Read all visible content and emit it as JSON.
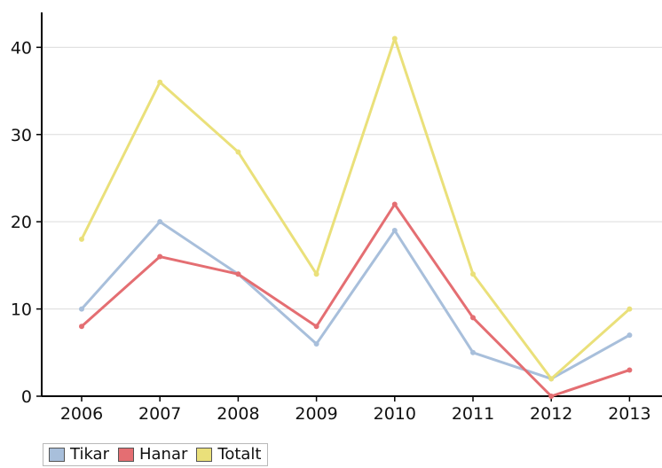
{
  "chart_data": {
    "type": "line",
    "categories": [
      "2006",
      "2007",
      "2008",
      "2009",
      "2010",
      "2011",
      "2012",
      "2013"
    ],
    "series": [
      {
        "name": "Tikar",
        "color": "#a8bfdb",
        "values": [
          10,
          20,
          14,
          6,
          19,
          5,
          2,
          7
        ]
      },
      {
        "name": "Hanar",
        "color": "#e46e72",
        "values": [
          8,
          16,
          14,
          8,
          22,
          9,
          0,
          3
        ]
      },
      {
        "name": "Totalt",
        "color": "#eae07a",
        "values": [
          18,
          36,
          28,
          14,
          41,
          14,
          2,
          10
        ]
      }
    ],
    "ylim": [
      0,
      44
    ],
    "yticks": [
      "0",
      "10",
      "20",
      "30",
      "40"
    ],
    "grid": true,
    "legend_position": "bottom-left",
    "title": "",
    "xlabel": "",
    "ylabel": ""
  }
}
